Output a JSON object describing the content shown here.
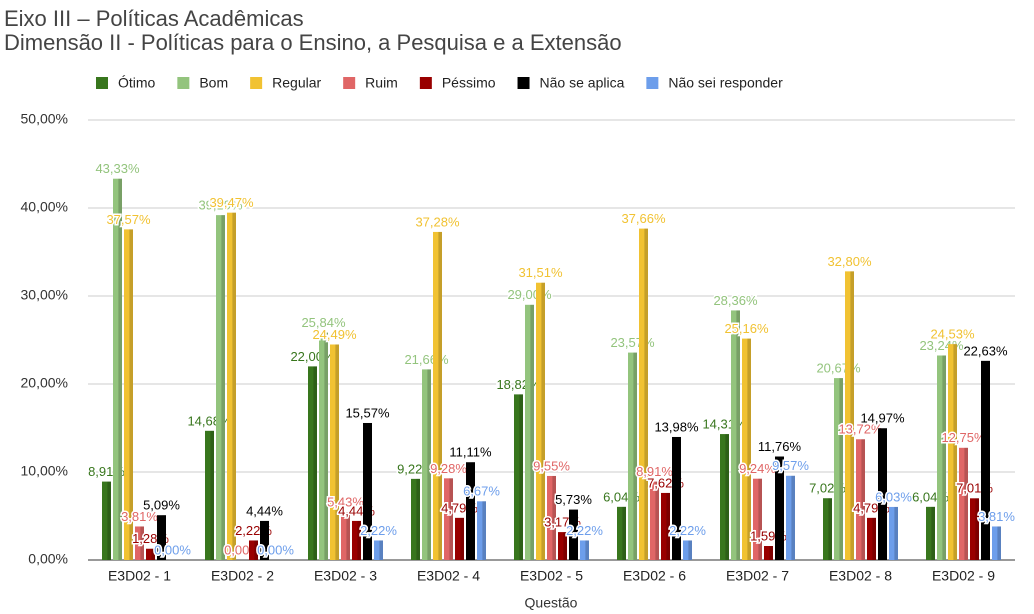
{
  "chart_data": {
    "type": "bar",
    "title": "Eixo III – Políticas Acadêmicas",
    "subtitle": "Dimensão II - Políticas para o Ensino, a Pesquisa e a Extensão",
    "x_label": "Questão",
    "categories": [
      "E3D02 - 1",
      "E3D02 - 2",
      "E3D02 - 3",
      "E3D02 - 4",
      "E3D02 - 5",
      "E3D02 - 6",
      "E3D02 - 7",
      "E3D02 - 8",
      "E3D02 - 9"
    ],
    "series": [
      {
        "name": "Ótimo",
        "color": "#38761d",
        "values": [
          8.91,
          14.68,
          22.0,
          9.22,
          18.82,
          6.04,
          14.31,
          7.02,
          6.04
        ],
        "value_labels": [
          "8,91%",
          "14,68%",
          "22,00%",
          "9,22%",
          "18,82%",
          "6,04%",
          "14,31%",
          "7,02%",
          "6,04%"
        ]
      },
      {
        "name": "Bom",
        "color": "#93c47d",
        "values": [
          43.33,
          39.19,
          25.84,
          21.66,
          29.0,
          23.57,
          28.36,
          20.67,
          23.24
        ],
        "value_labels": [
          "43,33%",
          "39,19%",
          "25,84%",
          "21,66%",
          "29,00%",
          "23,57%",
          "28,36%",
          "20,67%",
          "23,24%"
        ]
      },
      {
        "name": "Regular",
        "color": "#f1c232",
        "values": [
          37.57,
          39.47,
          24.49,
          37.28,
          31.51,
          37.66,
          25.16,
          32.8,
          24.53
        ],
        "value_labels": [
          "37,57%",
          "39,47%",
          "24,49%",
          "37,28%",
          "31,51%",
          "37,66%",
          "25,16%",
          "32,80%",
          "24,53%"
        ]
      },
      {
        "name": "Ruim",
        "color": "#e06666",
        "values": [
          3.81,
          0.0,
          5.43,
          9.28,
          9.55,
          8.91,
          9.24,
          13.72,
          12.75
        ],
        "value_labels": [
          "3,81%",
          "0,00%",
          "5,43%",
          "9,28%",
          "9,55%",
          "8,91%",
          "9,24%",
          "13,72%",
          "12,75%"
        ]
      },
      {
        "name": "Péssimo",
        "color": "#990000",
        "values": [
          1.28,
          2.22,
          4.44,
          4.79,
          3.17,
          7.62,
          1.59,
          4.79,
          7.01
        ],
        "value_labels": [
          "1,28%",
          "2,22%",
          "4,44%",
          "4,79%",
          "3,17%",
          "7,62%",
          "1,59%",
          "4,79%",
          "7,01%"
        ]
      },
      {
        "name": "Não se aplica",
        "color": "#000000",
        "values": [
          5.09,
          4.44,
          15.57,
          11.11,
          5.73,
          13.98,
          11.76,
          14.97,
          22.63
        ],
        "value_labels": [
          "5,09%",
          "4,44%",
          "15,57%",
          "11,11%",
          "5,73%",
          "13,98%",
          "11,76%",
          "14,97%",
          "22,63%"
        ]
      },
      {
        "name": "Não sei responder",
        "color": "#6d9eeb",
        "values": [
          0.0,
          0.0,
          2.22,
          6.67,
          2.22,
          2.22,
          9.57,
          6.03,
          3.81
        ],
        "value_labels": [
          "0,00%",
          "0,00%",
          "2,22%",
          "6,67%",
          "2,22%",
          "2,22%",
          "9,57%",
          "6,03%",
          "3,81%"
        ]
      }
    ],
    "ylim": [
      0,
      50
    ],
    "yticks": [
      {
        "value": 0,
        "label": "0,00%"
      },
      {
        "value": 10,
        "label": "10,00%"
      },
      {
        "value": 20,
        "label": "20,00%"
      },
      {
        "value": 30,
        "label": "30,00%"
      },
      {
        "value": 40,
        "label": "40,00%"
      },
      {
        "value": 50,
        "label": "50,00%"
      }
    ],
    "grid": true
  }
}
